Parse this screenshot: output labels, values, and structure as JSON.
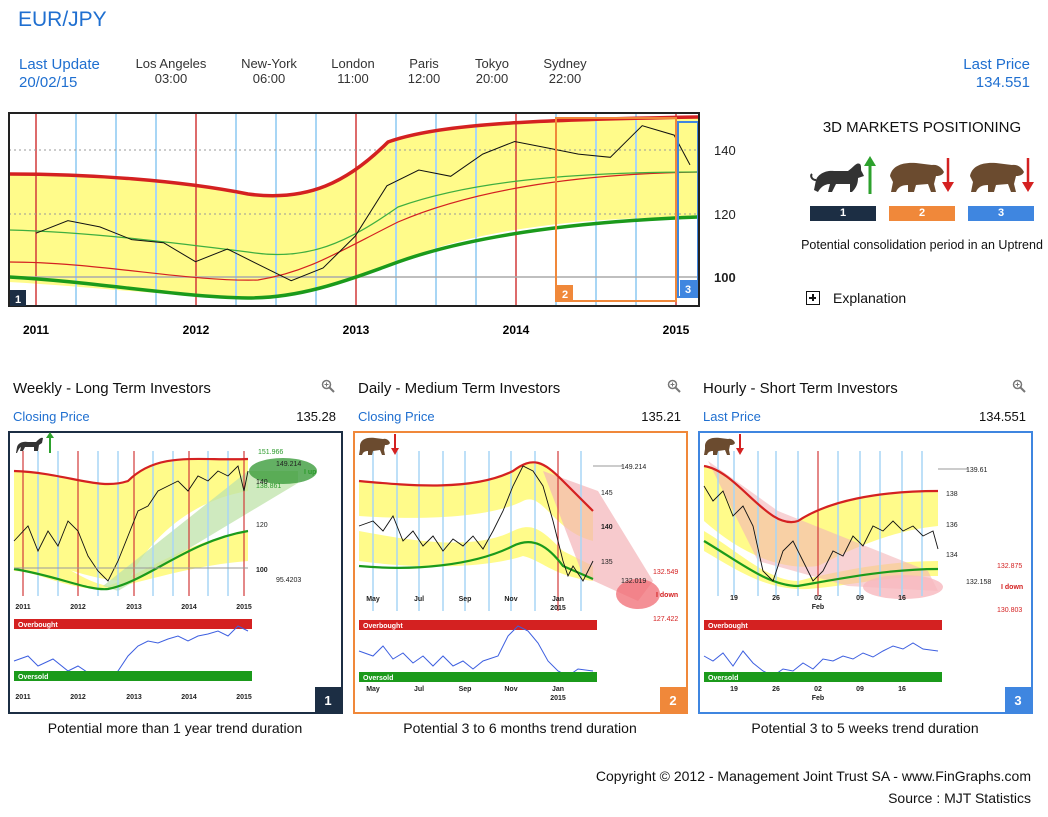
{
  "header": {
    "title": "EUR/JPY",
    "last_update_label": "Last Update",
    "last_update_date": "20/02/15",
    "last_price_label": "Last Price",
    "last_price_value": "134.551",
    "cities": [
      {
        "name": "Los Angeles",
        "time": "03:00"
      },
      {
        "name": "New-York",
        "time": "06:00"
      },
      {
        "name": "London",
        "time": "11:00"
      },
      {
        "name": "Paris",
        "time": "12:00"
      },
      {
        "name": "Tokyo",
        "time": "20:00"
      },
      {
        "name": "Sydney",
        "time": "22:00"
      }
    ]
  },
  "positioning": {
    "title": "3D MARKETS POSITIONING",
    "badges": [
      "1",
      "2",
      "3"
    ],
    "badge_colors": [
      "#1c2e44",
      "#f0883a",
      "#3f86e0"
    ],
    "description": "Potential consolidation period in an Uptrend",
    "explanation_label": "Explanation",
    "icons": [
      "bull-up-icon",
      "bear-down-icon",
      "bear-down-icon"
    ]
  },
  "panels": [
    {
      "title": "Weekly - Long Term Investors",
      "sub_label": "Closing Price",
      "sub_value": "135.28",
      "footer": "Potential more than 1 year trend duration",
      "badge": "1",
      "color": "#1c2e44"
    },
    {
      "title": "Daily - Medium Term Investors",
      "sub_label": "Closing Price",
      "sub_value": "135.21",
      "footer": "Potential 3 to 6 months trend duration",
      "badge": "2",
      "color": "#f0883a"
    },
    {
      "title": "Hourly - Short Term Investors",
      "sub_label": "Last Price",
      "sub_value": "134.551",
      "footer": "Potential 3 to 5 weeks trend duration",
      "badge": "3",
      "color": "#3f86e0"
    }
  ],
  "footer": {
    "copyright": "Copyright © 2012 - Management Joint Trust SA - www.FinGraphs.com",
    "source": "Source : MJT Statistics"
  },
  "chart_data": [
    {
      "type": "line",
      "x_ticks": [
        "2011",
        "2012",
        "2013",
        "2014",
        "2015"
      ],
      "y_ticks": [
        100,
        120,
        140
      ],
      "ylim": [
        90,
        151
      ],
      "badges": [
        "1",
        "2",
        "3"
      ],
      "series": [
        {
          "x": [
            2011.0,
            2011.2,
            2011.4,
            2011.6,
            2011.8,
            2012.0,
            2012.2,
            2012.4,
            2012.6,
            2012.8,
            2013.0,
            2013.2,
            2013.4,
            2013.6,
            2013.8,
            2014.0,
            2014.2,
            2014.4,
            2014.6,
            2014.8,
            2015.0,
            2015.1
          ],
          "y": [
            113,
            117,
            115,
            111,
            110,
            104,
            108,
            103,
            98,
            102,
            112,
            128,
            133,
            131,
            138,
            142,
            140,
            138,
            137,
            147,
            144,
            134.6
          ]
        }
      ]
    },
    {
      "type": "line",
      "x_ticks": [
        "2011",
        "2012",
        "2013",
        "2014",
        "2015"
      ],
      "y_ticks": [
        "100",
        "120",
        "140"
      ],
      "annotations": [
        "151.966",
        "149.214",
        "138.861",
        "95.4203",
        "I up"
      ],
      "oscillator": {
        "overbought_label": "Overbought",
        "oversold_label": "Oversold"
      }
    },
    {
      "type": "line",
      "x_ticks": [
        "May",
        "Jul",
        "Sep",
        "Nov",
        "Jan",
        "2015"
      ],
      "y_ticks": [
        "145",
        "140",
        "135"
      ],
      "annotations": [
        "149.214",
        "132.549",
        "132.019",
        "127.422",
        "I down"
      ],
      "oscillator": {
        "overbought_label": "Overbought",
        "oversold_label": "Oversold"
      }
    },
    {
      "type": "line",
      "x_ticks": [
        "19",
        "26",
        "02",
        "09",
        "16",
        "Feb"
      ],
      "y_ticks": [
        "138",
        "136",
        "134"
      ],
      "annotations": [
        "139.61",
        "132.875",
        "132.158",
        "130.803",
        "I down"
      ],
      "oscillator": {
        "overbought_label": "Overbought",
        "oversold_label": "Oversold"
      }
    }
  ]
}
